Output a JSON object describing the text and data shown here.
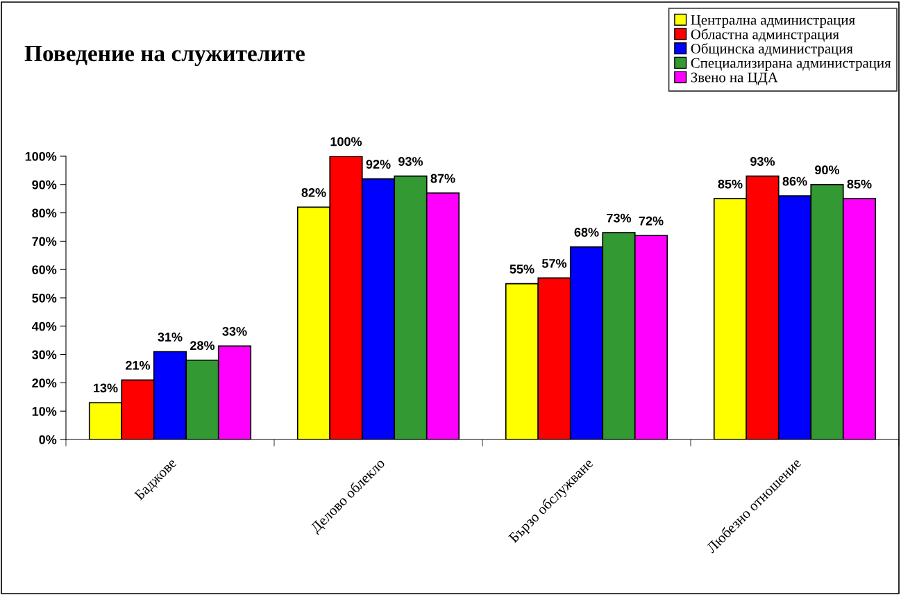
{
  "chart_data": {
    "type": "bar",
    "title": "Поведение на служителите",
    "categories": [
      "Баджове",
      "Делово облекло",
      "Бързо обслужване",
      "Любезно отношение"
    ],
    "series": [
      {
        "name": "Централна администрация",
        "color": "#ffff00",
        "values": [
          13,
          82,
          55,
          85
        ],
        "value_labels": [
          "13%",
          "82%",
          "55%",
          "85%"
        ]
      },
      {
        "name": "Областна админстрация",
        "color": "#ff0000",
        "values": [
          21,
          100,
          57,
          93
        ],
        "value_labels": [
          "21%",
          "100%",
          "57%",
          "93%"
        ]
      },
      {
        "name": "Общинска администрация",
        "color": "#0000ff",
        "values": [
          31,
          92,
          68,
          86
        ],
        "value_labels": [
          "31%",
          "92%",
          "68%",
          "86%"
        ]
      },
      {
        "name": "Специализирана администрация",
        "color": "#339933",
        "values": [
          28,
          93,
          73,
          90
        ],
        "value_labels": [
          "28%",
          "93%",
          "73%",
          "90%"
        ]
      },
      {
        "name": "Звено на ЦДА",
        "color": "#ff00ff",
        "values": [
          33,
          87,
          72,
          85
        ],
        "value_labels": [
          "33%",
          "87%",
          "72%",
          "85%"
        ]
      }
    ],
    "ylim": [
      0,
      100
    ],
    "yticks": [
      {
        "value": 0,
        "label": "0%"
      },
      {
        "value": 10,
        "label": "10%"
      },
      {
        "value": 20,
        "label": "20%"
      },
      {
        "value": 30,
        "label": "30%"
      },
      {
        "value": 40,
        "label": "40%"
      },
      {
        "value": 50,
        "label": "50%"
      },
      {
        "value": 60,
        "label": "60%"
      },
      {
        "value": 70,
        "label": "70%"
      },
      {
        "value": 80,
        "label": "80%"
      },
      {
        "value": 90,
        "label": "90%"
      },
      {
        "value": 100,
        "label": "100%"
      }
    ],
    "grid": false,
    "legend": "top right"
  }
}
